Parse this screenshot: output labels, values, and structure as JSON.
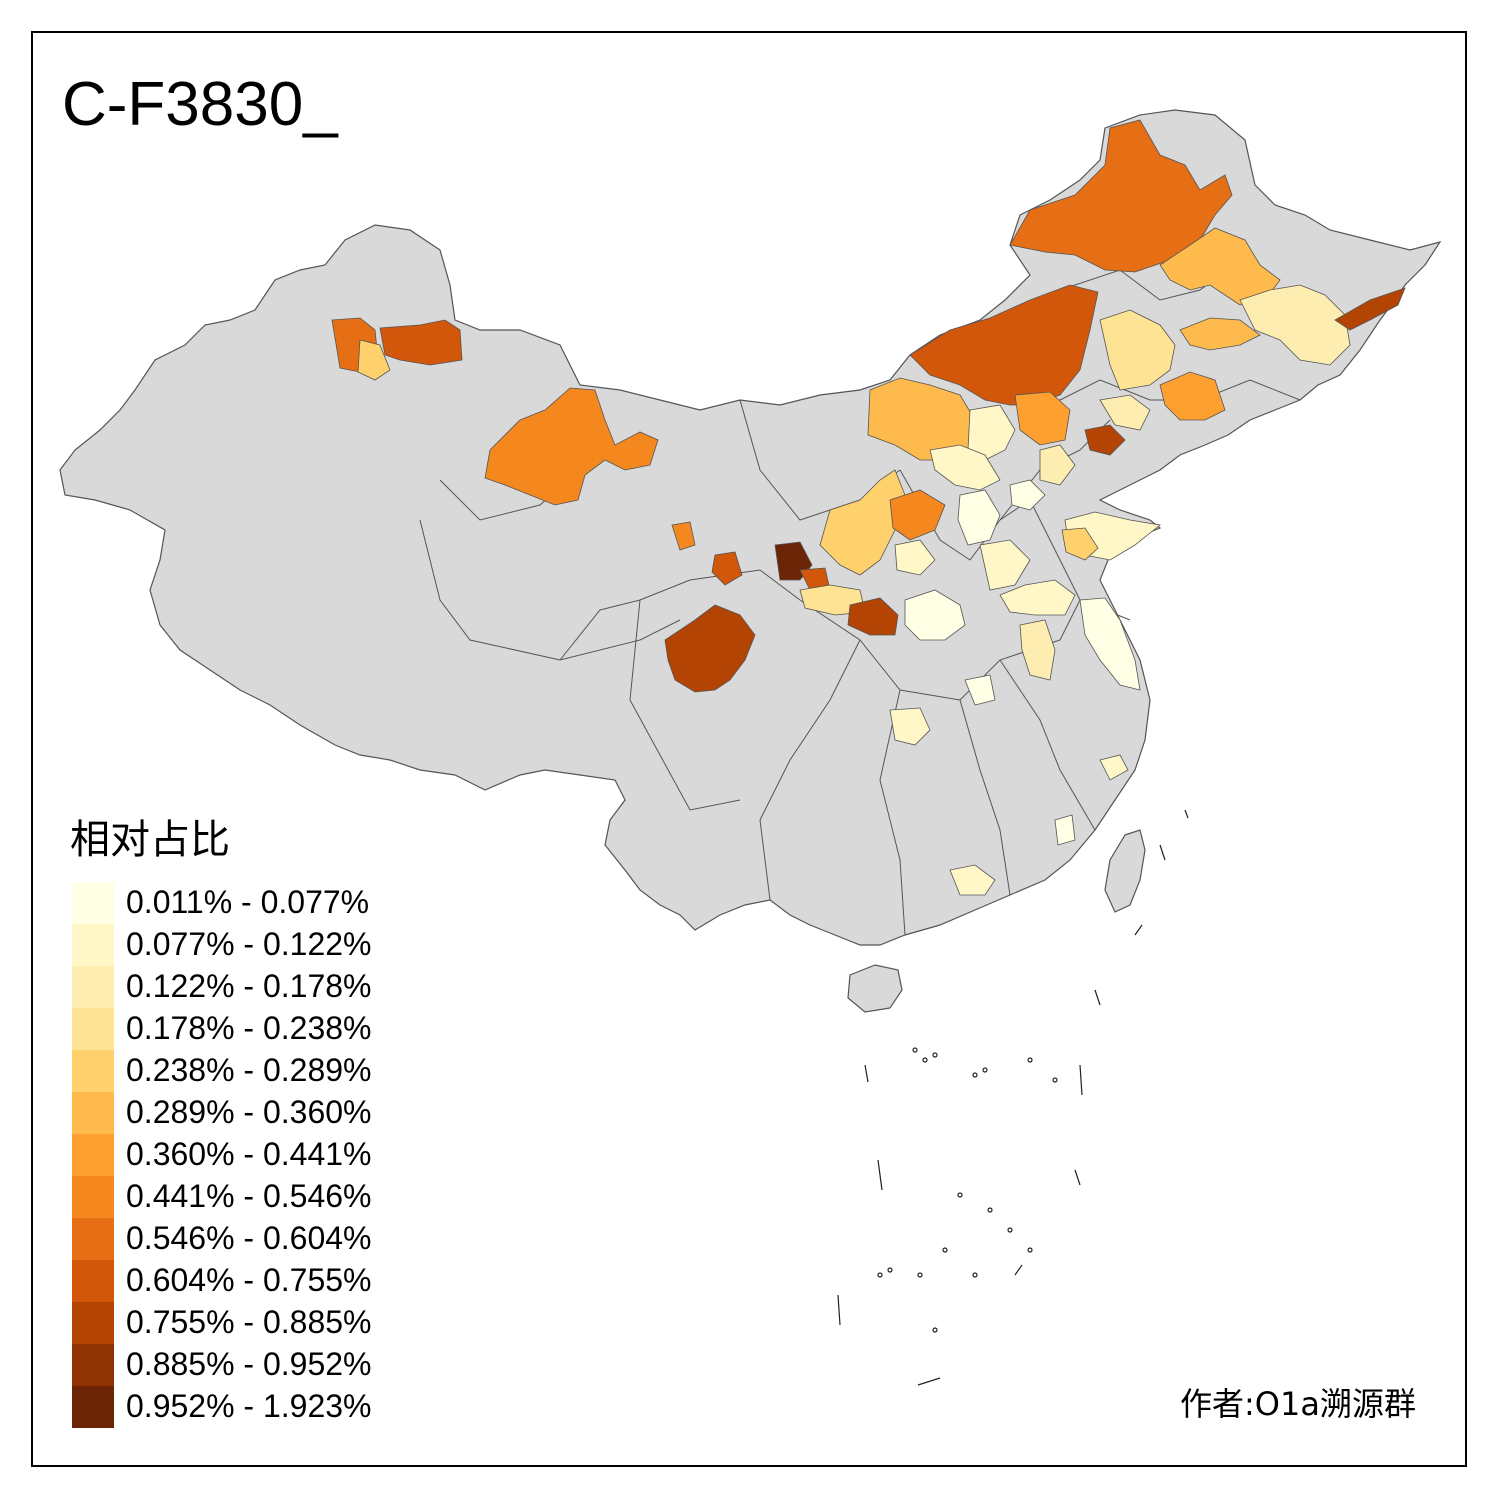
{
  "title": "C-F3830_",
  "legend": {
    "title": "相对占比",
    "classes": [
      {
        "label": "0.011% - 0.077%",
        "color": "#ffffe5"
      },
      {
        "label": "0.077% - 0.122%",
        "color": "#fff7c8"
      },
      {
        "label": "0.122% - 0.178%",
        "color": "#feedb0"
      },
      {
        "label": "0.178% - 0.238%",
        "color": "#fee394"
      },
      {
        "label": "0.238% - 0.289%",
        "color": "#fed16d"
      },
      {
        "label": "0.289% - 0.360%",
        "color": "#feba4c"
      },
      {
        "label": "0.360% - 0.441%",
        "color": "#fda030"
      },
      {
        "label": "0.441% - 0.546%",
        "color": "#f5871f"
      },
      {
        "label": "0.546% - 0.604%",
        "color": "#e66e14"
      },
      {
        "label": "0.604% - 0.755%",
        "color": "#d2570a"
      },
      {
        "label": "0.755% - 0.885%",
        "color": "#b44404"
      },
      {
        "label": "0.885% - 0.952%",
        "color": "#8f3204"
      },
      {
        "label": "0.952% - 1.923%",
        "color": "#6b2506"
      }
    ]
  },
  "credit": "作者:O1a溯源群",
  "map_colors": {
    "no_data": "#d9d9d9",
    "border": "#555555"
  }
}
